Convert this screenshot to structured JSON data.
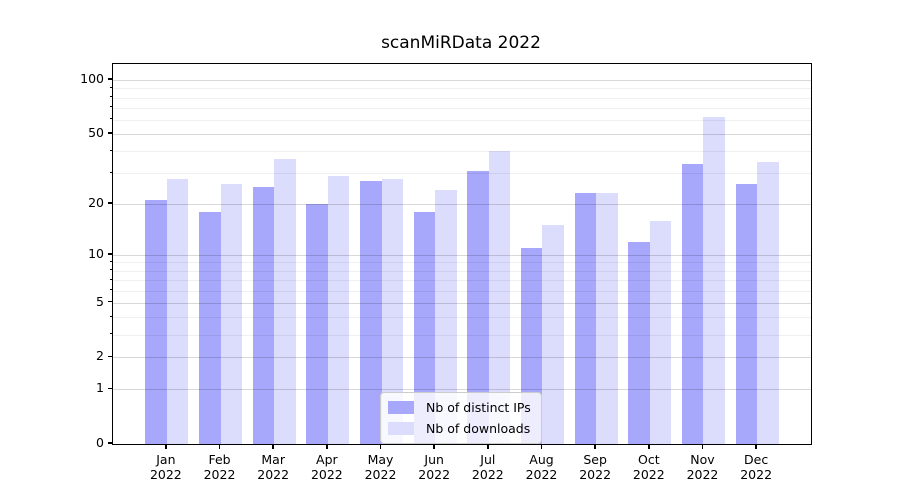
{
  "chart_data": {
    "type": "bar",
    "title": "scanMiRData 2022",
    "categories": [
      "Jan 2022",
      "Feb 2022",
      "Mar 2022",
      "Apr 2022",
      "May 2022",
      "Jun 2022",
      "Jul 2022",
      "Aug 2022",
      "Sep 2022",
      "Oct 2022",
      "Nov 2022",
      "Dec 2022"
    ],
    "series": [
      {
        "name": "Nb of distinct IPs",
        "values": [
          21,
          18,
          25,
          20,
          27,
          18,
          31,
          11,
          23,
          12,
          34,
          26
        ],
        "color": "#a7a7fb"
      },
      {
        "name": "Nb of downloads",
        "values": [
          28,
          26,
          36,
          29,
          28,
          24,
          40,
          15,
          23,
          16,
          62,
          35
        ],
        "color": "#dcdcfd"
      }
    ],
    "xlabel": "",
    "ylabel": "",
    "yscale": "log1p",
    "ylim": [
      0,
      123
    ],
    "yticks": [
      0,
      1,
      2,
      5,
      10,
      20,
      50,
      100
    ],
    "yticks_minor": [
      3,
      4,
      6,
      7,
      8,
      9,
      30,
      40,
      60,
      70,
      80,
      90
    ],
    "grid": true,
    "legend_position": "lower center"
  },
  "colors": {
    "grid_major": "#d8d8d8",
    "grid_minor": "#efefef",
    "axis": "#000000",
    "text": "#000000",
    "legend_border": "#cccccc"
  }
}
